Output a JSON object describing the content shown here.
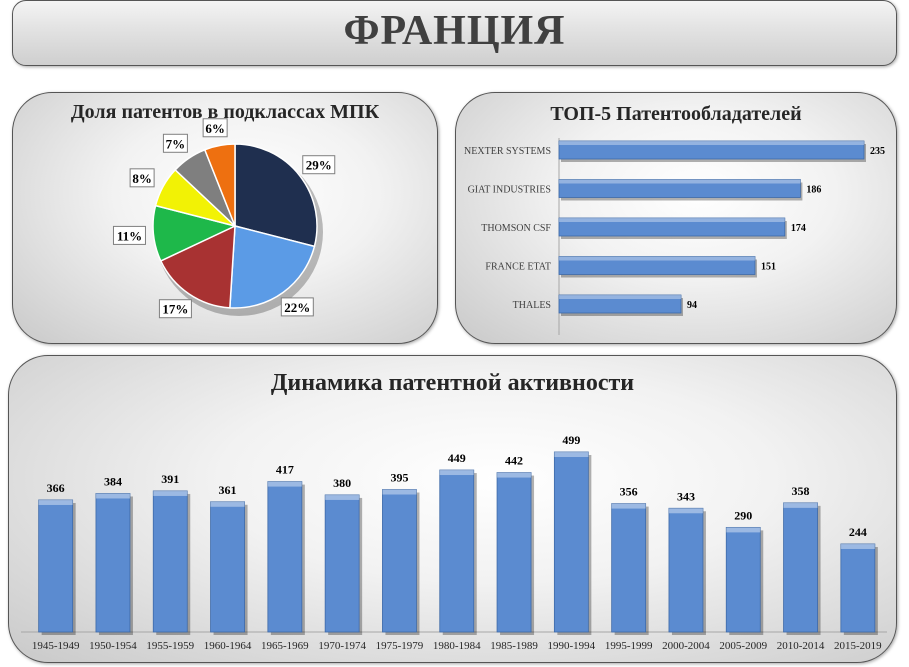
{
  "header": {
    "title": "ФРАНЦИЯ"
  },
  "colors": {
    "bar": "#5b8bd0",
    "pie": [
      "#1f2f4f",
      "#5b9be6",
      "#a83232",
      "#1eb84a",
      "#f2f205",
      "#7f7f7f",
      "#ee7010"
    ]
  },
  "chart_data": [
    {
      "type": "pie",
      "title": "Доля патентов в подклассах МПК",
      "values": [
        29,
        22,
        17,
        11,
        8,
        7,
        6
      ],
      "labels": [
        "29%",
        "22%",
        "17%",
        "11%",
        "8%",
        "7%",
        "6%"
      ]
    },
    {
      "type": "bar",
      "orientation": "horizontal",
      "title": "ТОП-5 Патентообладателей",
      "categories": [
        "NEXTER SYSTEMS",
        "GIAT INDUSTRIES",
        "THOMSON CSF",
        "FRANCE ETAT",
        "THALES"
      ],
      "values": [
        235,
        186,
        174,
        151,
        94
      ],
      "xlim": [
        0,
        235
      ]
    },
    {
      "type": "bar",
      "title": "Динамика патентной активности",
      "categories": [
        "1945-1949",
        "1950-1954",
        "1955-1959",
        "1960-1964",
        "1965-1969",
        "1970-1974",
        "1975-1979",
        "1980-1984",
        "1985-1989",
        "1990-1994",
        "1995-1999",
        "2000-2004",
        "2005-2009",
        "2010-2014",
        "2015-2019"
      ],
      "values": [
        366,
        384,
        391,
        361,
        417,
        380,
        395,
        449,
        442,
        499,
        356,
        343,
        290,
        358,
        244
      ],
      "ylim": [
        0,
        499
      ]
    }
  ]
}
